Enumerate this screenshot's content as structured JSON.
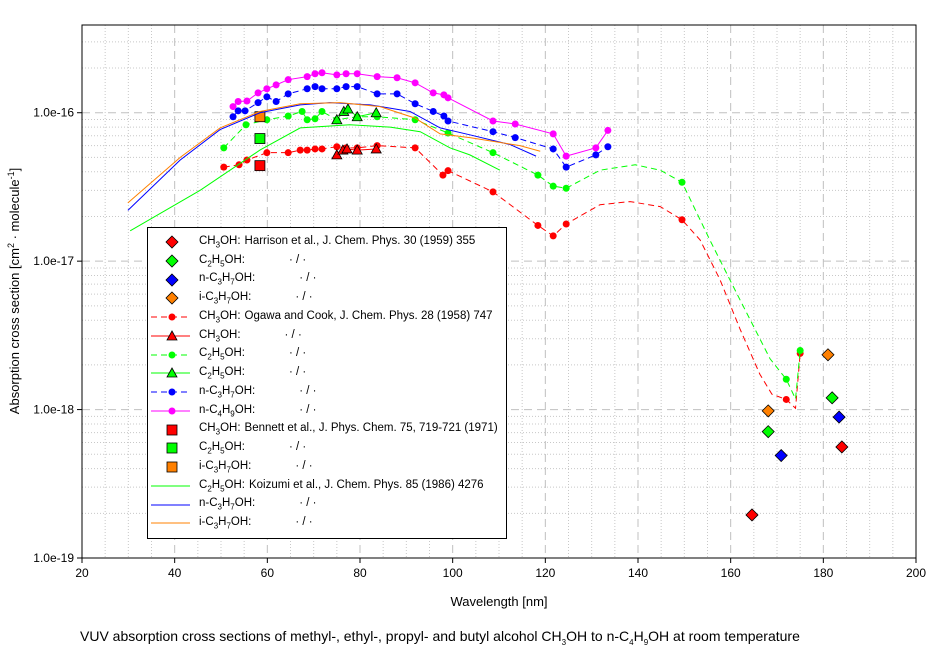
{
  "chart_data": {
    "type": "scatter",
    "title": "",
    "xlabel": "Wavelength [nm]",
    "ylabel": "Absorption cross section [cm2 · molecule-1]",
    "xlim": [
      20,
      200
    ],
    "ylim": [
      1e-19,
      3.9e-16
    ],
    "yscale": "log",
    "x_ticks": [
      "20",
      "40",
      "60",
      "80",
      "100",
      "120",
      "140",
      "160",
      "180",
      "200"
    ],
    "y_ticks": [
      "1.0e-19",
      "1.0e-18",
      "1.0e-17",
      "1.0e-16"
    ],
    "grid": true,
    "legend_placement": "lower-left",
    "caption": "VUV absorption cross sections of methyl-, ethyl-, propyl- and butyl alcohol CH3OH to n-C4H9OH at room temperature",
    "series": [
      {
        "name": "CH3OH",
        "ref": "Harrison et al., J. Chem. Phys. 30 (1959) 355",
        "color": "#ff0000",
        "marker": "diamond",
        "line": "none",
        "points": [
          [
            164.6,
            1.95e-19
          ],
          [
            184.0,
            5.6e-19
          ]
        ]
      },
      {
        "name": "C2H5OH",
        "ref": "· / ·",
        "color": "#00ff00",
        "marker": "diamond",
        "line": "none",
        "points": [
          [
            168.1,
            7.1e-19
          ],
          [
            181.9,
            1.2e-18
          ]
        ]
      },
      {
        "name": "n-C3H7OH",
        "ref": "· / ·",
        "color": "#0000ff",
        "marker": "diamond",
        "line": "none",
        "points": [
          [
            170.9,
            4.9e-19
          ],
          [
            183.4,
            8.9e-19
          ]
        ]
      },
      {
        "name": "i-C3H7OH",
        "ref": "· / ·",
        "color": "#ff8000",
        "marker": "diamond",
        "line": "none",
        "points": [
          [
            168.1,
            9.8e-19
          ],
          [
            181.0,
            2.34e-18
          ]
        ]
      },
      {
        "name": "CH3OH",
        "ref": "Ogawa and Cook, J. Chem. Phys. 28 (1958) 747",
        "color": "#ff0000",
        "marker": "circle",
        "line": "dashed",
        "points": [
          [
            50.6,
            4.3e-17,
            1
          ],
          [
            53.9,
            4.46e-17,
            1
          ],
          [
            55.6,
            4.8e-17,
            1
          ],
          [
            59.9,
            5.38e-17,
            1
          ],
          [
            64.5,
            5.38e-17,
            1
          ],
          [
            67.1,
            5.6e-17,
            1
          ],
          [
            68.6,
            5.6e-17,
            1
          ],
          [
            70.3,
            5.7e-17,
            1
          ],
          [
            71.8,
            5.7e-17,
            1
          ],
          [
            75.0,
            5.9e-17,
            1
          ],
          [
            77.0,
            5.8e-17,
            1
          ],
          [
            79.4,
            5.8e-17,
            1
          ],
          [
            83.7,
            6e-17,
            1
          ],
          [
            91.9,
            5.8e-17,
            1
          ],
          [
            97.9,
            3.8e-17,
            1
          ],
          [
            99.0,
            4.07e-17,
            1
          ],
          [
            108.7,
            2.93e-17,
            1
          ],
          [
            118.4,
            1.74e-17,
            1
          ],
          [
            121.7,
            1.48e-17,
            1
          ],
          [
            124.5,
            1.78e-17,
            1
          ],
          [
            131.8,
            2.4e-17,
            0
          ],
          [
            138.3,
            2.52e-17,
            0
          ],
          [
            144.8,
            2.33e-17,
            0
          ],
          [
            149.5,
            1.9e-17,
            1
          ],
          [
            153.4,
            1.39e-17,
            0
          ],
          [
            157.7,
            7.5e-18,
            0
          ],
          [
            162.0,
            3.5e-18,
            0
          ],
          [
            166.3,
            1.73e-18,
            0
          ],
          [
            168.9,
            1.27e-18,
            0
          ],
          [
            172.0,
            1.17e-18,
            1
          ],
          [
            174.0,
            1.02e-18,
            0
          ],
          [
            175.0,
            2.39e-18,
            1
          ]
        ]
      },
      {
        "name": "CH3OH",
        "ref": "· / ·",
        "color": "#ff0000",
        "marker": "triangle",
        "line": "solid",
        "points": [
          [
            75.0,
            5.2e-17,
            1
          ],
          [
            76.3,
            5.6e-17,
            1
          ],
          [
            77.2,
            5.7e-17,
            1
          ],
          [
            79.4,
            5.6e-17,
            1
          ],
          [
            83.5,
            5.7e-17,
            1
          ]
        ]
      },
      {
        "name": "C2H5OH",
        "ref": "· / ·",
        "color": "#00ff00",
        "marker": "circle",
        "line": "dashed",
        "points": [
          [
            50.6,
            5.8e-17,
            1
          ],
          [
            55.4,
            8.3e-17,
            1
          ],
          [
            59.9,
            8.97e-17,
            1
          ],
          [
            64.5,
            9.5e-17,
            1
          ],
          [
            67.5,
            1.02e-16,
            1
          ],
          [
            68.6,
            8.97e-17,
            1
          ],
          [
            70.3,
            9.1e-17,
            1
          ],
          [
            71.8,
            1.02e-16,
            1
          ],
          [
            75.0,
            8.97e-17,
            1
          ],
          [
            79.4,
            9.4e-17,
            1
          ],
          [
            83.7,
            9.4e-17,
            1
          ],
          [
            91.9,
            8.97e-17,
            1
          ],
          [
            99.0,
            7.3e-17,
            1
          ],
          [
            108.7,
            5.38e-17,
            1
          ],
          [
            118.4,
            3.8e-17,
            1
          ],
          [
            121.7,
            3.2e-17,
            1
          ],
          [
            124.5,
            3.1e-17,
            1
          ],
          [
            131.8,
            4.1e-17,
            0
          ],
          [
            139.4,
            4.46e-17,
            0
          ],
          [
            144.8,
            4.1e-17,
            0
          ],
          [
            149.5,
            3.4e-17,
            1
          ],
          [
            155.5,
            1.39e-17,
            0
          ],
          [
            162.0,
            5.5e-18,
            0
          ],
          [
            168.5,
            2.2e-18,
            0
          ],
          [
            172.0,
            1.6e-18,
            1
          ],
          [
            174.0,
            1.18e-18,
            0
          ],
          [
            175.0,
            2.5e-18,
            1
          ]
        ]
      },
      {
        "name": "C2H5OH",
        "ref": "· / ·",
        "color": "#00ff00",
        "marker": "triangle",
        "line": "solid",
        "points": [
          [
            75.0,
            8.97e-17,
            1
          ],
          [
            76.5,
            1.02e-16,
            1
          ],
          [
            77.4,
            1.06e-16,
            1
          ],
          [
            79.4,
            9.4e-17,
            1
          ],
          [
            83.5,
            1e-16,
            1
          ]
        ]
      },
      {
        "name": "n-C3H7OH",
        "ref": "· / ·",
        "color": "#0000ff",
        "marker": "circle",
        "line": "dashed",
        "points": [
          [
            52.6,
            9.4e-17,
            1
          ],
          [
            53.7,
            1.03e-16,
            1
          ],
          [
            55.2,
            1.03e-16,
            1
          ],
          [
            58.0,
            1.17e-16,
            1
          ],
          [
            59.9,
            1.28e-16,
            1
          ],
          [
            61.9,
            1.19e-16,
            1
          ],
          [
            64.5,
            1.34e-16,
            1
          ],
          [
            68.6,
            1.45e-16,
            1
          ],
          [
            70.3,
            1.5e-16,
            1
          ],
          [
            71.8,
            1.45e-16,
            1
          ],
          [
            75.0,
            1.45e-16,
            1
          ],
          [
            77.0,
            1.5e-16,
            1
          ],
          [
            79.4,
            1.5e-16,
            1
          ],
          [
            83.7,
            1.34e-16,
            1
          ],
          [
            88.0,
            1.34e-16,
            1
          ],
          [
            91.9,
            1.15e-16,
            1
          ],
          [
            95.8,
            1.02e-16,
            1
          ],
          [
            98.1,
            9.5e-17,
            1
          ],
          [
            99.0,
            8.8e-17,
            1
          ],
          [
            108.7,
            7.45e-17,
            1
          ],
          [
            113.5,
            6.8e-17,
            1
          ],
          [
            121.7,
            5.7e-17,
            1
          ],
          [
            124.5,
            4.3e-17,
            1
          ],
          [
            130.9,
            5.2e-17,
            1
          ],
          [
            133.5,
            5.9e-17,
            1
          ]
        ]
      },
      {
        "name": "n-C4H9OH",
        "ref": "· / ·",
        "color": "#ff00ff",
        "marker": "circle",
        "line": "solid",
        "points": [
          [
            52.6,
            1.1e-16,
            1
          ],
          [
            53.7,
            1.19e-16,
            1
          ],
          [
            55.6,
            1.2e-16,
            1
          ],
          [
            58.0,
            1.36e-16,
            1
          ],
          [
            59.9,
            1.45e-16,
            1
          ],
          [
            61.9,
            1.54e-16,
            1
          ],
          [
            64.5,
            1.67e-16,
            1
          ],
          [
            68.6,
            1.75e-16,
            1
          ],
          [
            70.3,
            1.83e-16,
            1
          ],
          [
            71.8,
            1.86e-16,
            1
          ],
          [
            75.0,
            1.8e-16,
            1
          ],
          [
            77.0,
            1.83e-16,
            1
          ],
          [
            79.4,
            1.83e-16,
            1
          ],
          [
            83.7,
            1.75e-16,
            1
          ],
          [
            88.0,
            1.72e-16,
            1
          ],
          [
            91.9,
            1.59e-16,
            1
          ],
          [
            95.8,
            1.36e-16,
            1
          ],
          [
            98.1,
            1.32e-16,
            1
          ],
          [
            99.0,
            1.26e-16,
            1
          ],
          [
            108.7,
            8.8e-17,
            1
          ],
          [
            113.5,
            8.4e-17,
            1
          ],
          [
            121.7,
            7.2e-17,
            1
          ],
          [
            124.5,
            5.1e-17,
            1
          ],
          [
            130.9,
            5.8e-17,
            1
          ],
          [
            133.5,
            7.6e-17,
            1
          ]
        ]
      },
      {
        "name": "CH3OH",
        "ref": "Bennett et al., J. Phys. Chem. 75, 719-721 (1971)",
        "color": "#ff0000",
        "marker": "square",
        "line": "none",
        "points": [
          [
            58.4,
            4.4e-17
          ]
        ]
      },
      {
        "name": "C2H5OH",
        "ref": "· / ·",
        "color": "#00ff00",
        "marker": "square",
        "line": "none",
        "points": [
          [
            58.4,
            6.7e-17
          ]
        ]
      },
      {
        "name": "i-C3H7OH",
        "ref": "· / ·",
        "color": "#ff8000",
        "marker": "square",
        "line": "none",
        "points": [
          [
            58.4,
            9.4e-17
          ]
        ]
      },
      {
        "name": "C2H5OH",
        "ref": "Koizumi et al., J. Chem. Phys. 85 (1986) 4276",
        "color": "#00ff00",
        "marker": "none",
        "line": "solid",
        "points": [
          [
            30.4,
            1.6e-17
          ],
          [
            45.5,
            3e-17
          ],
          [
            58.4,
            5.6e-17
          ],
          [
            67.1,
            7.9e-17
          ],
          [
            77.8,
            8.3e-17
          ],
          [
            86.5,
            8e-17
          ],
          [
            93.0,
            7.45e-17
          ],
          [
            99.4,
            5.8e-17
          ],
          [
            103.7,
            5.2e-17
          ],
          [
            110.2,
            4.1e-17
          ]
        ]
      },
      {
        "name": "n-C3H7OH",
        "ref": "· / ·",
        "color": "#0000ff",
        "marker": "none",
        "line": "solid",
        "points": [
          [
            29.9,
            2.2e-17
          ],
          [
            41.2,
            4.8e-17
          ],
          [
            49.8,
            7.7e-17
          ],
          [
            58.4,
            1e-16
          ],
          [
            67.1,
            1.13e-16
          ],
          [
            73.5,
            1.17e-16
          ],
          [
            82.2,
            1.13e-16
          ],
          [
            90.8,
            1.02e-16
          ],
          [
            97.3,
            7.9e-17
          ],
          [
            103.7,
            7.1e-17
          ],
          [
            112.4,
            6.1e-17
          ],
          [
            118.0,
            5.1e-17
          ]
        ]
      },
      {
        "name": "i-C3H7OH",
        "ref": "· / ·",
        "color": "#ff8000",
        "marker": "none",
        "line": "solid",
        "points": [
          [
            29.9,
            2.47e-17
          ],
          [
            41.2,
            5e-17
          ],
          [
            49.8,
            7.9e-17
          ],
          [
            58.4,
            1.02e-16
          ],
          [
            67.1,
            1.15e-16
          ],
          [
            75.7,
            1.17e-16
          ],
          [
            84.3,
            1.1e-16
          ],
          [
            91.9,
            9.2e-17
          ],
          [
            97.3,
            7.2e-17
          ],
          [
            103.7,
            6.8e-17
          ],
          [
            114.5,
            6e-17
          ],
          [
            118.9,
            5.5e-17
          ]
        ]
      }
    ]
  }
}
